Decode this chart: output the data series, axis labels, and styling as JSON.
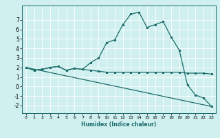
{
  "xlabel": "Humidex (Indice chaleur)",
  "x_ticks": [
    0,
    1,
    2,
    3,
    4,
    5,
    6,
    7,
    8,
    9,
    10,
    11,
    12,
    13,
    14,
    15,
    16,
    17,
    18,
    19,
    20,
    21,
    22,
    23
  ],
  "xlim": [
    -0.5,
    23.5
  ],
  "ylim": [
    -2.8,
    8.5
  ],
  "y_ticks": [
    -2,
    -1,
    0,
    1,
    2,
    3,
    4,
    5,
    6,
    7
  ],
  "bg_color": "#cff0ee",
  "line_color": "#1a6b6b",
  "grid_color": "#ffffff",
  "series1": {
    "x": [
      0,
      1,
      2,
      3,
      4,
      5,
      6,
      7,
      8,
      9,
      10,
      11,
      12,
      13,
      14,
      15,
      16,
      17,
      18,
      19,
      20,
      21,
      22,
      23
    ],
    "y": [
      2.0,
      1.7,
      1.8,
      2.0,
      2.1,
      1.7,
      1.9,
      1.8,
      1.7,
      1.6,
      1.5,
      1.5,
      1.5,
      1.5,
      1.5,
      1.5,
      1.5,
      1.5,
      1.5,
      1.5,
      1.4,
      1.4,
      1.4,
      1.3
    ]
  },
  "series2": {
    "x": [
      0,
      1,
      2,
      3,
      4,
      5,
      6,
      7,
      8,
      9,
      10,
      11,
      12,
      13,
      14,
      15,
      16,
      17,
      18,
      19,
      20,
      21,
      22,
      23
    ],
    "y": [
      2.0,
      1.7,
      1.8,
      2.0,
      2.1,
      1.7,
      1.9,
      1.8,
      2.5,
      3.0,
      4.6,
      4.9,
      6.5,
      7.6,
      7.8,
      6.2,
      6.5,
      6.8,
      5.2,
      3.8,
      0.2,
      -0.9,
      -1.2,
      -2.1
    ]
  },
  "series3": {
    "x": [
      0,
      23
    ],
    "y": [
      2.0,
      -2.1
    ]
  }
}
